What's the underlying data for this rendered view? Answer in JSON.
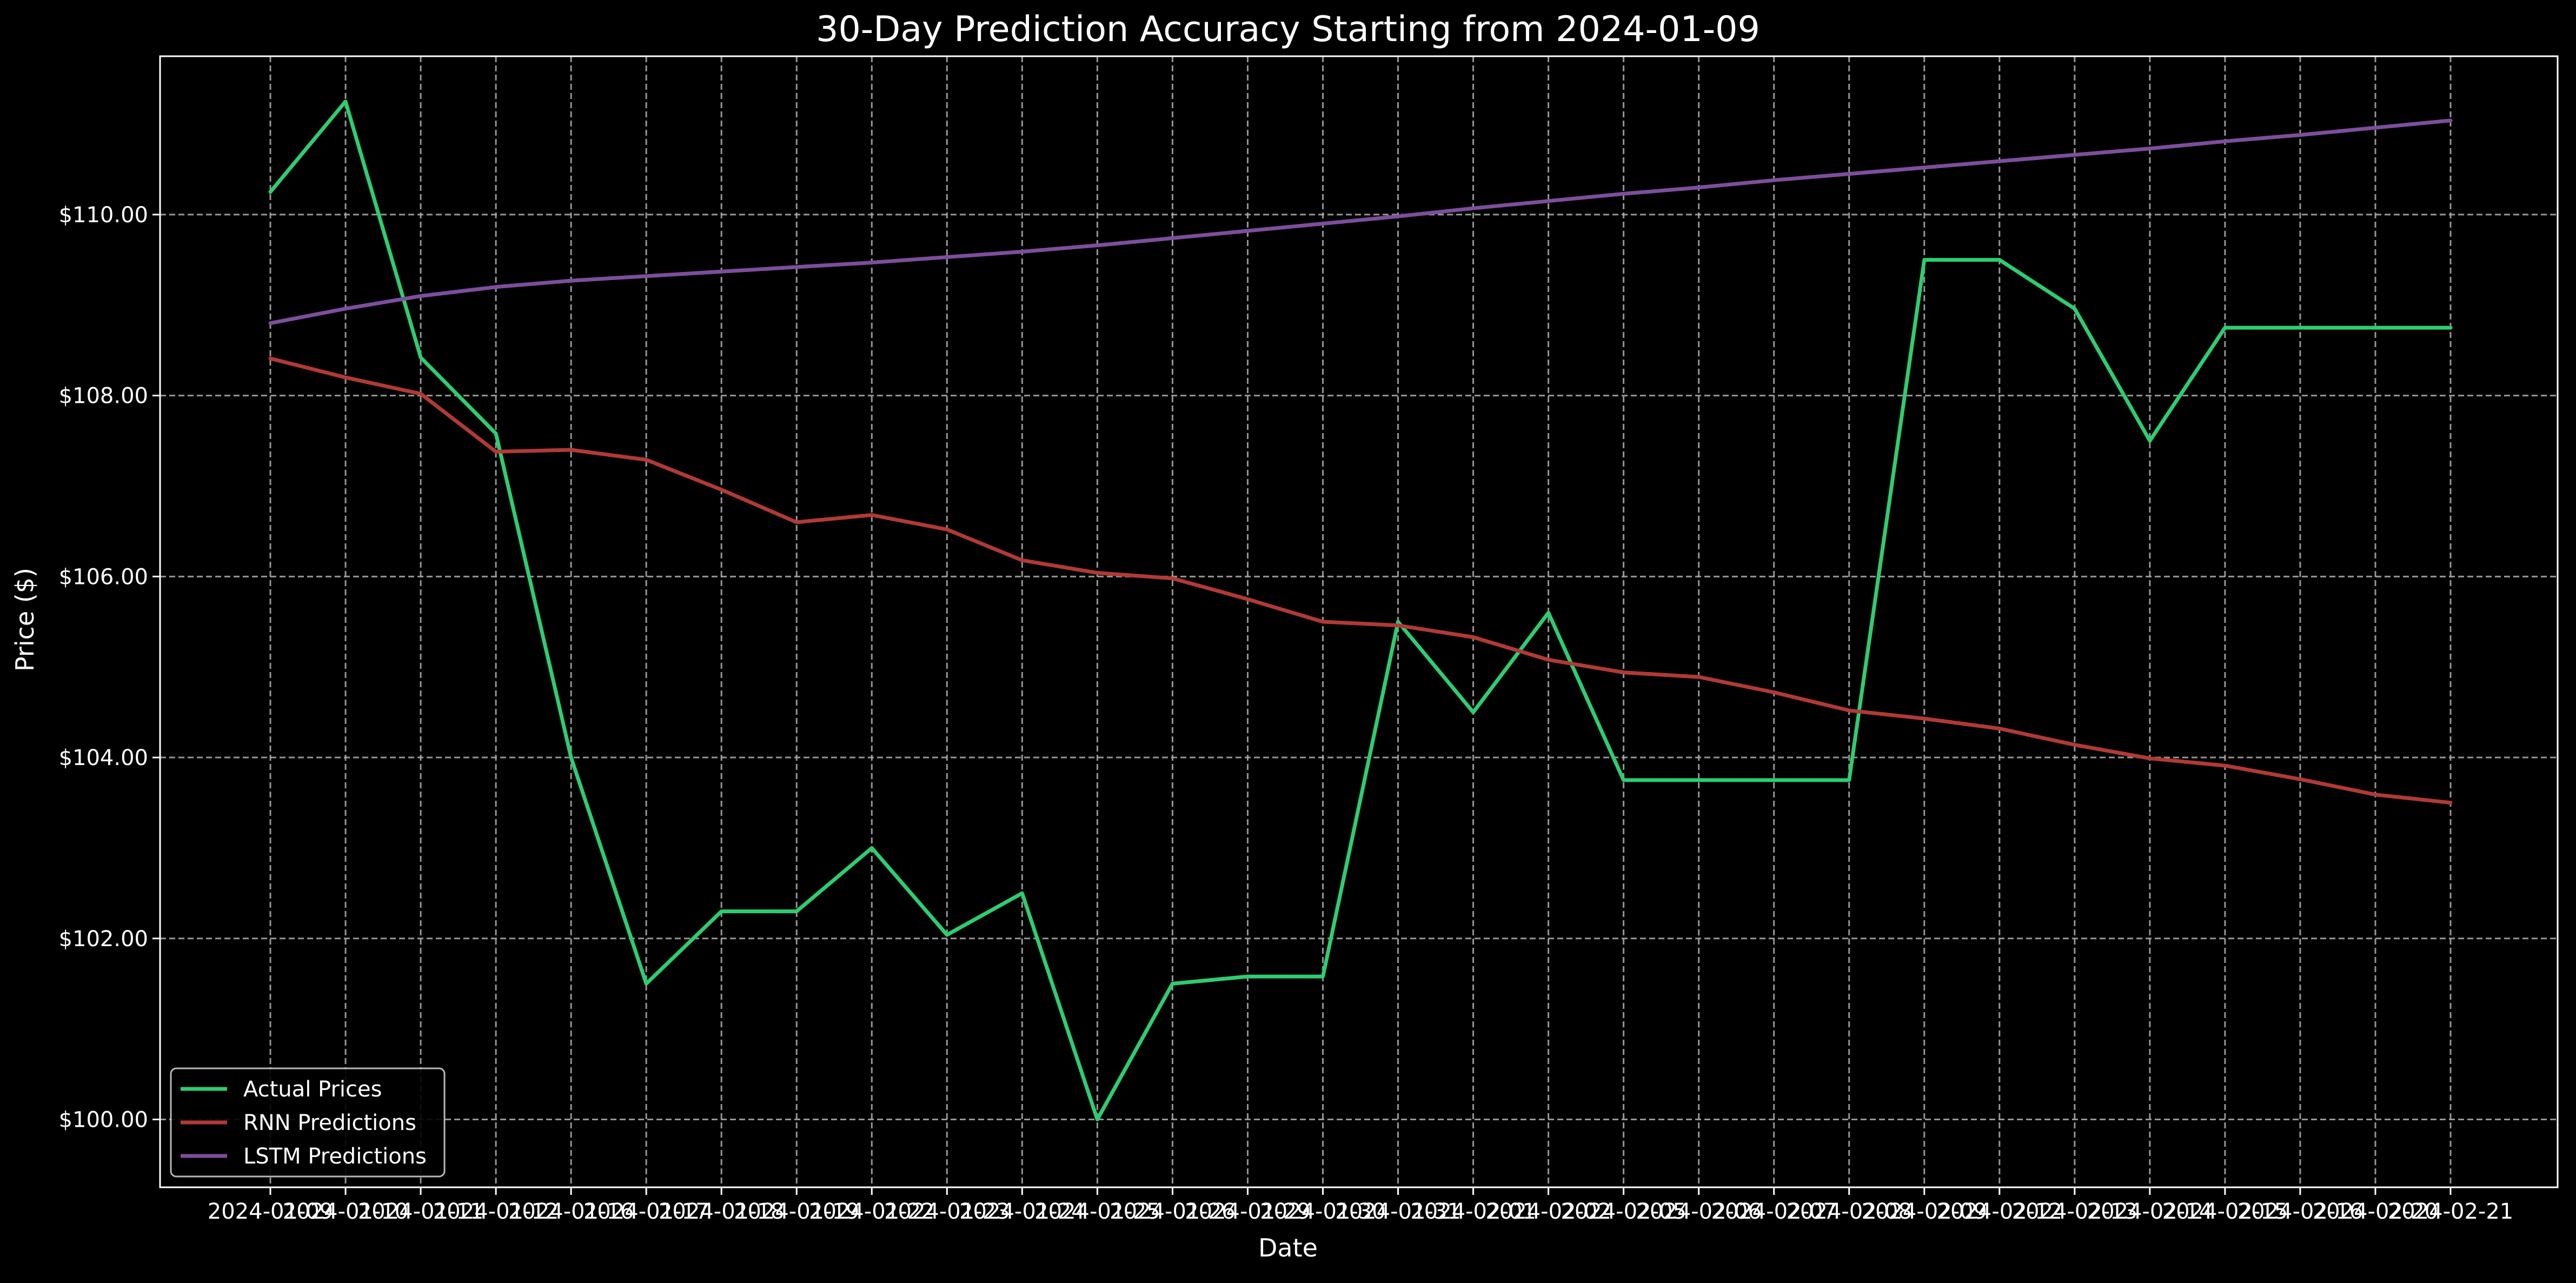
{
  "chart_data": {
    "type": "line",
    "title": "30-Day Prediction Accuracy Starting from 2024-01-09",
    "xlabel": "Date",
    "ylabel": "Price ($)",
    "ylim": [
      99.25,
      111.75
    ],
    "grid": true,
    "legend_position": "bottom-left",
    "y_ticks": [
      {
        "value": 100,
        "label": "$100.00"
      },
      {
        "value": 102,
        "label": "$102.00"
      },
      {
        "value": 104,
        "label": "$104.00"
      },
      {
        "value": 106,
        "label": "$106.00"
      },
      {
        "value": 108,
        "label": "$108.00"
      },
      {
        "value": 110,
        "label": "$110.00"
      }
    ],
    "x": [
      "2024-01-09",
      "2024-01-10",
      "2024-01-11",
      "2024-01-12",
      "2024-01-16",
      "2024-01-17",
      "2024-01-18",
      "2024-01-19",
      "2024-01-22",
      "2024-01-23",
      "2024-01-24",
      "2024-01-25",
      "2024-01-26",
      "2024-01-29",
      "2024-01-30",
      "2024-01-31",
      "2024-02-01",
      "2024-02-02",
      "2024-02-05",
      "2024-02-06",
      "2024-02-07",
      "2024-02-08",
      "2024-02-09",
      "2024-02-12",
      "2024-02-13",
      "2024-02-14",
      "2024-02-15",
      "2024-02-16",
      "2024-02-20",
      "2024-02-21"
    ],
    "series": [
      {
        "name": "Actual Prices",
        "color": "#2ecc71",
        "values": [
          110.25,
          111.25,
          108.42,
          107.58,
          104.0,
          101.5,
          102.3,
          102.3,
          103.0,
          102.04,
          102.5,
          100.0,
          101.5,
          101.58,
          101.58,
          105.5,
          104.5,
          105.6,
          103.75,
          103.75,
          103.75,
          103.75,
          109.5,
          109.5,
          108.96,
          107.5,
          108.75,
          108.75,
          108.75,
          108.75
        ]
      },
      {
        "name": "RNN Predictions",
        "color": "#b03a35",
        "values": [
          108.41,
          108.2,
          108.02,
          107.38,
          107.4,
          107.29,
          106.96,
          106.6,
          106.68,
          106.52,
          106.18,
          106.04,
          105.98,
          105.75,
          105.5,
          105.46,
          105.33,
          105.08,
          104.94,
          104.89,
          104.72,
          104.52,
          104.43,
          104.32,
          104.14,
          103.99,
          103.91,
          103.76,
          103.59,
          103.5
        ]
      },
      {
        "name": "LSTM Predictions",
        "color": "#7d4e9c",
        "values": [
          108.8,
          108.96,
          109.1,
          109.2,
          109.27,
          109.32,
          109.37,
          109.42,
          109.47,
          109.53,
          109.59,
          109.66,
          109.74,
          109.82,
          109.9,
          109.98,
          110.07,
          110.15,
          110.23,
          110.3,
          110.38,
          110.45,
          110.52,
          110.59,
          110.66,
          110.73,
          110.81,
          110.88,
          110.96,
          111.04
        ]
      }
    ]
  }
}
